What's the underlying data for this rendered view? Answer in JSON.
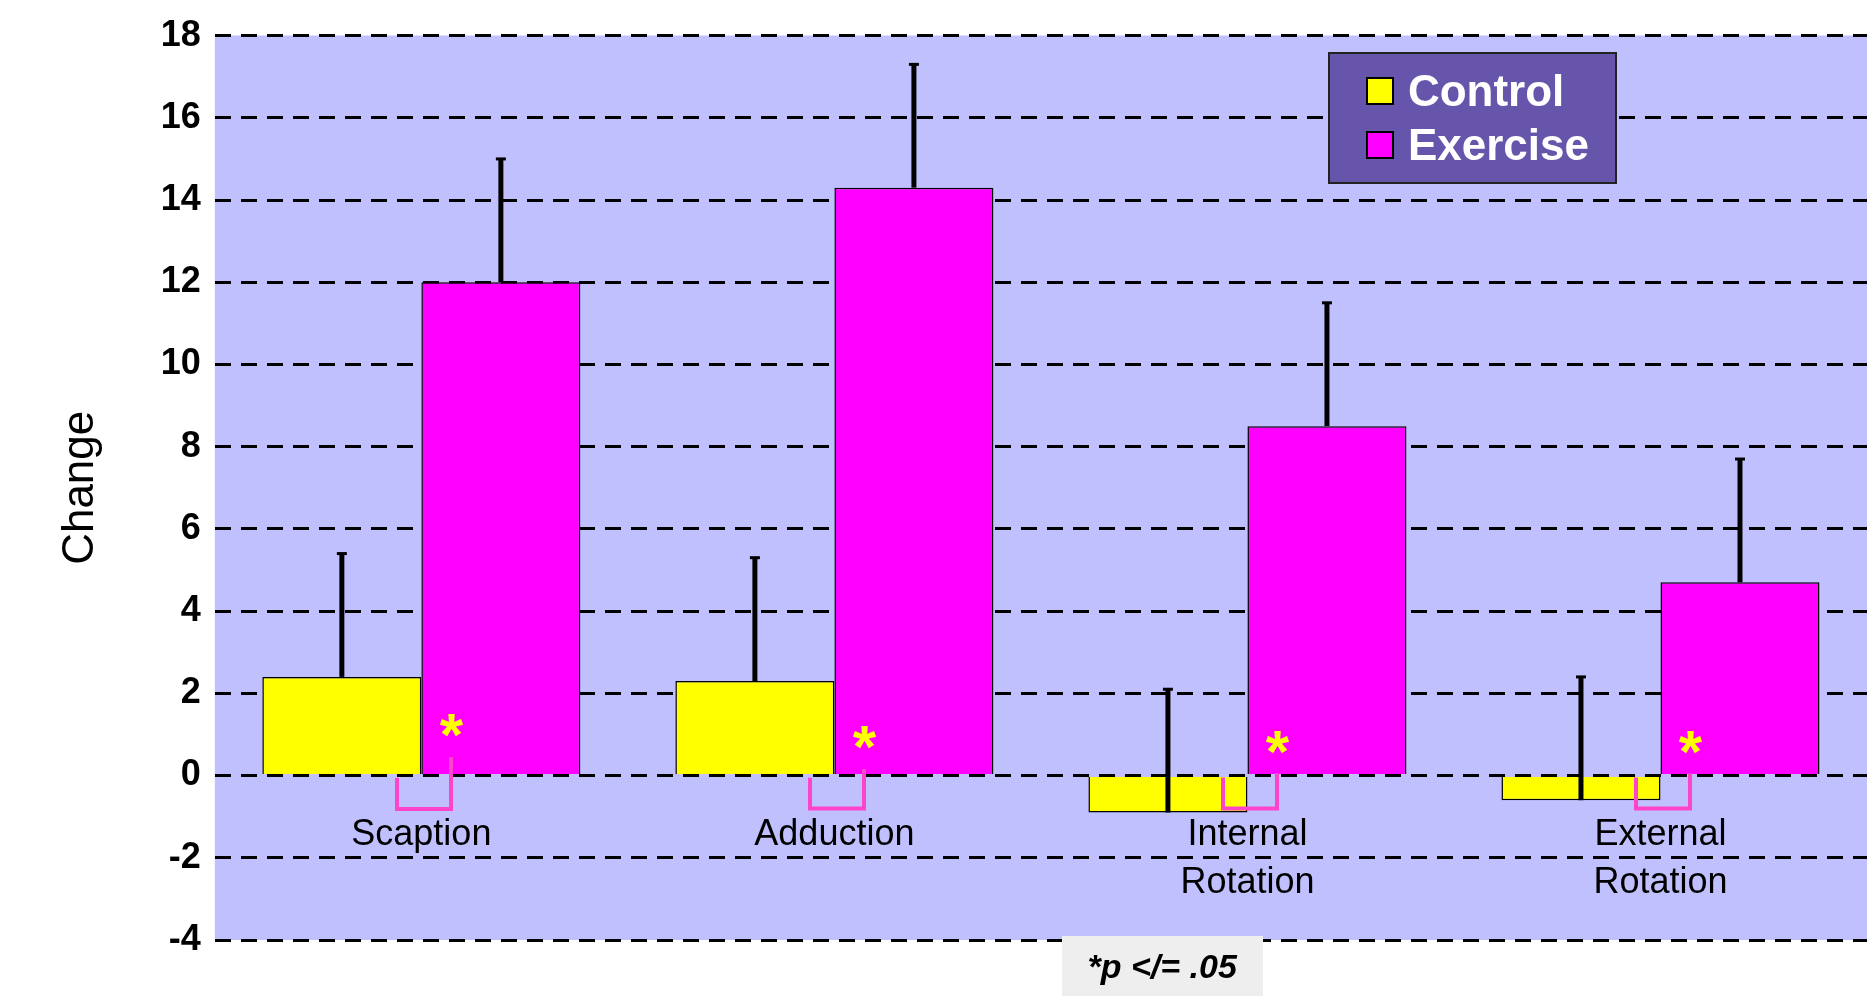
{
  "chart_data": {
    "type": "bar",
    "ylabel": "Change",
    "categories": [
      "Scaption",
      "Adduction",
      "Internal Rotation",
      "External Rotation"
    ],
    "series": [
      {
        "name": "Control",
        "color": "#ffff00",
        "values": [
          2.4,
          2.3,
          -0.9,
          -0.6
        ],
        "errors": [
          [
            2.4,
            5.4
          ],
          [
            2.3,
            5.3
          ],
          [
            -0.9,
            2.1
          ],
          [
            -0.6,
            2.4
          ]
        ]
      },
      {
        "name": "Exercise",
        "color": "#ff00ff",
        "values": [
          12.0,
          14.3,
          8.5,
          4.7
        ],
        "errors": [
          [
            12.0,
            15.0
          ],
          [
            14.3,
            17.3
          ],
          [
            8.5,
            11.5
          ],
          [
            4.7,
            7.7
          ]
        ]
      }
    ],
    "ylim": [
      -4,
      18
    ],
    "yticks": [
      -4,
      -2,
      0,
      2,
      4,
      6,
      8,
      10,
      12,
      14,
      16,
      18
    ],
    "grid": "y",
    "legend": "top right",
    "annotations": [
      {
        "text": "*",
        "x": "Scaption",
        "y": 0.9
      },
      {
        "text": "*",
        "x": "Adduction",
        "y": 0.6
      },
      {
        "text": "*",
        "x": "Internal Rotation",
        "y": 0.5
      },
      {
        "text": "*",
        "x": "External Rotation",
        "y": 0.5
      },
      "*p </= .05"
    ]
  }
}
